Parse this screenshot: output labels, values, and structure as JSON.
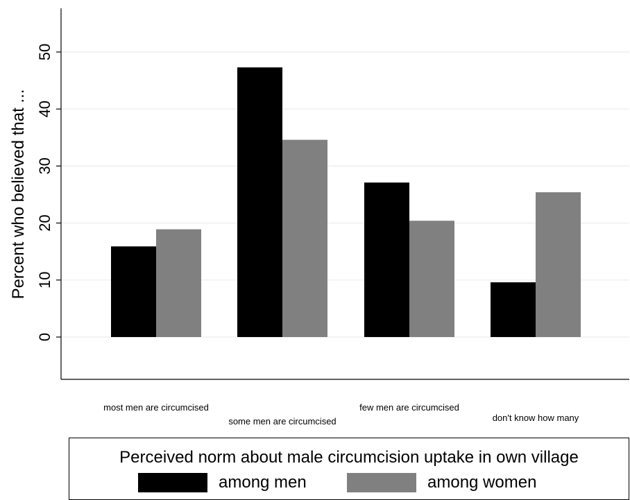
{
  "chart_data": {
    "type": "bar",
    "categories": [
      "most men are circumcised",
      "some men are circumcised",
      "few men are circumcised",
      "don't know how many"
    ],
    "series": [
      {
        "name": "among men",
        "color": "#000000",
        "values": [
          15.9,
          47.3,
          27.1,
          9.6
        ]
      },
      {
        "name": "among women",
        "color": "#808080",
        "values": [
          18.9,
          34.6,
          20.4,
          25.4
        ]
      }
    ],
    "ylabel": "Percent who believed that ...",
    "xlabel": "",
    "ylim": [
      -7.5,
      57
    ],
    "yticks": [
      0,
      10,
      20,
      30,
      40,
      50
    ],
    "grid": true,
    "legend": {
      "title": "Perceived norm about male circumcision uptake in own village",
      "position": "bottom"
    }
  }
}
